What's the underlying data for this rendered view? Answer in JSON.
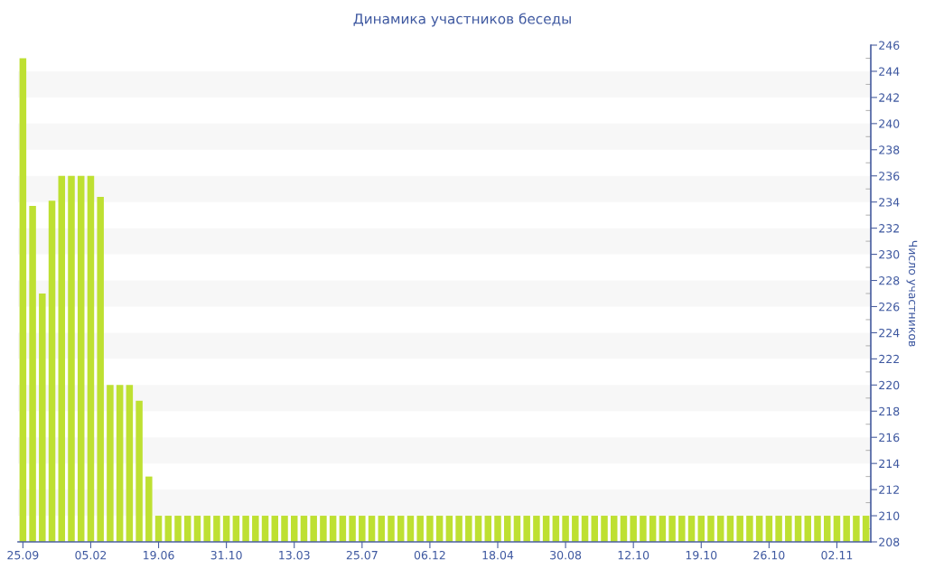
{
  "chart_data": {
    "type": "bar",
    "title": "Динамика участников беседы",
    "ylabel": "Число участников",
    "categories": [
      "25.09",
      null,
      null,
      null,
      null,
      null,
      null,
      "05.02",
      null,
      null,
      null,
      null,
      null,
      null,
      "19.06",
      null,
      null,
      null,
      null,
      null,
      null,
      "31.10",
      null,
      null,
      null,
      null,
      null,
      null,
      "13.03",
      null,
      null,
      null,
      null,
      null,
      null,
      "25.07",
      null,
      null,
      null,
      null,
      null,
      null,
      "06.12",
      null,
      null,
      null,
      null,
      null,
      null,
      "18.04",
      null,
      null,
      null,
      null,
      null,
      null,
      "30.08",
      null,
      null,
      null,
      null,
      null,
      null,
      "12.10",
      null,
      null,
      null,
      null,
      null,
      null,
      "19.10",
      null,
      null,
      null,
      null,
      null,
      null,
      "26.10",
      null,
      null,
      null,
      null,
      null,
      null,
      "02.11",
      null,
      null,
      null
    ],
    "values": [
      245,
      233.7,
      227,
      234.1,
      236,
      236,
      236,
      236,
      234.4,
      220,
      220,
      220,
      218.8,
      213,
      210,
      210,
      210,
      210,
      210,
      210,
      210,
      210,
      210,
      210,
      210,
      210,
      210,
      210,
      210,
      210,
      210,
      210,
      210,
      210,
      210,
      210,
      210,
      210,
      210,
      210,
      210,
      210,
      210,
      210,
      210,
      210,
      210,
      210,
      210,
      210,
      210,
      210,
      210,
      210,
      210,
      210,
      210,
      210,
      210,
      210,
      210,
      210,
      210,
      210,
      210,
      210,
      210,
      210,
      210,
      210,
      210,
      210,
      210,
      210,
      210,
      210,
      210,
      210,
      210,
      210,
      210,
      210,
      210,
      210,
      210,
      210,
      210,
      210
    ],
    "color": "#bee032",
    "ylim": [
      208,
      246
    ],
    "yticks": [
      208,
      {
        "value": 209,
        "label": null
      },
      210,
      {
        "value": 211,
        "label": null
      },
      212,
      {
        "value": 213,
        "label": null
      },
      214,
      {
        "value": 215,
        "label": null
      },
      216,
      {
        "value": 217,
        "label": null
      },
      218,
      {
        "value": 219,
        "label": null
      },
      220,
      {
        "value": 221,
        "label": null
      },
      222,
      {
        "value": 223,
        "label": null
      },
      224,
      {
        "value": 225,
        "label": null
      },
      226,
      {
        "value": 227,
        "label": null
      },
      228,
      {
        "value": 229,
        "label": null
      },
      230,
      {
        "value": 231,
        "label": null
      },
      232,
      {
        "value": 233,
        "label": null
      },
      234,
      {
        "value": 235,
        "label": null
      },
      236,
      {
        "value": 237,
        "label": null
      },
      238,
      {
        "value": 239,
        "label": null
      },
      240,
      {
        "value": 241,
        "label": null
      },
      242,
      {
        "value": 243,
        "label": null
      },
      244,
      {
        "value": 245,
        "label": null
      },
      246
    ],
    "bands": [
      {
        "axis": "y",
        "from": 210,
        "to": 212,
        "color": "#f7f7f7"
      },
      {
        "axis": "y",
        "from": 214,
        "to": 216,
        "color": "#f7f7f7"
      },
      {
        "axis": "y",
        "from": 218,
        "to": 220,
        "color": "#f7f7f7"
      },
      {
        "axis": "y",
        "from": 222,
        "to": 224,
        "color": "#f7f7f7"
      },
      {
        "axis": "y",
        "from": 226,
        "to": 228,
        "color": "#f7f7f7"
      },
      {
        "axis": "y",
        "from": 230,
        "to": 232,
        "color": "#f7f7f7"
      },
      {
        "axis": "y",
        "from": 234,
        "to": 236,
        "color": "#f7f7f7"
      },
      {
        "axis": "y",
        "from": 238,
        "to": 240,
        "color": "#f7f7f7"
      },
      {
        "axis": "y",
        "from": 242,
        "to": 244,
        "color": "#f7f7f7"
      }
    ]
  }
}
